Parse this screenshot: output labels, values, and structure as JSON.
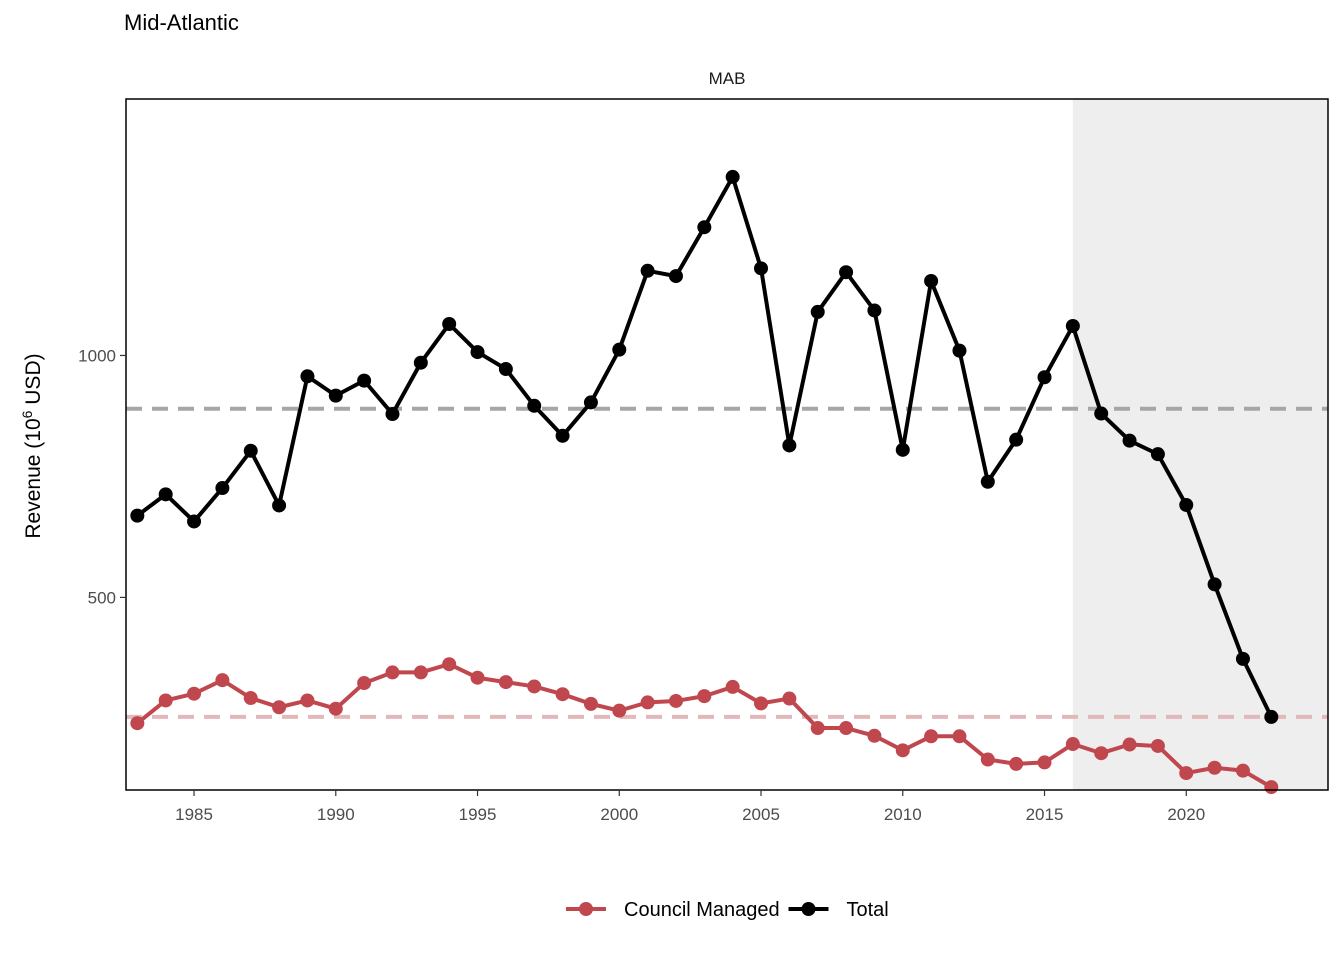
{
  "title": "Mid-Atlantic",
  "chart_data": {
    "type": "line",
    "title": "Mid-Atlantic",
    "facet": "MAB",
    "xlabel": "",
    "ylabel_main": "Revenue (10",
    "ylabel_sup": "6",
    "ylabel_tail": " USD)",
    "xlim": [
      1982.6,
      2025.0
    ],
    "ylim": [
      102,
      1530
    ],
    "x_ticks": [
      1985,
      1990,
      1995,
      2000,
      2005,
      2010,
      2015,
      2020
    ],
    "y_ticks": [
      500,
      1000
    ],
    "grid": false,
    "shaded_region": {
      "from": 2016,
      "to": 2025.0,
      "color": "#eeeeee"
    },
    "x": [
      1983,
      1984,
      1985,
      1986,
      1987,
      1988,
      1989,
      1990,
      1991,
      1992,
      1993,
      1994,
      1995,
      1996,
      1997,
      1998,
      1999,
      2000,
      2001,
      2002,
      2003,
      2004,
      2005,
      2006,
      2007,
      2008,
      2009,
      2010,
      2011,
      2012,
      2013,
      2014,
      2015,
      2016,
      2017,
      2018,
      2019,
      2020,
      2021,
      2022,
      2023
    ],
    "series": [
      {
        "name": "Council Managed",
        "color": "#c1474e",
        "mean": 253,
        "mean_color": "#e3b8bb",
        "values": [
          240,
          287,
          301,
          329,
          292,
          273,
          287,
          270,
          323,
          345,
          345,
          362,
          334,
          325,
          316,
          300,
          280,
          266,
          283,
          286,
          296,
          315,
          281,
          291,
          230,
          230,
          214,
          184,
          213,
          213,
          165,
          156,
          159,
          197,
          178,
          196,
          193,
          137,
          148,
          142,
          108
        ]
      },
      {
        "name": "Total",
        "color": "#000000",
        "mean": 890,
        "mean_color": "#a6a6a6",
        "values": [
          669,
          713,
          657,
          726,
          803,
          690,
          957,
          917,
          948,
          879,
          985,
          1065,
          1007,
          972,
          896,
          834,
          903,
          1012,
          1175,
          1164,
          1265,
          1369,
          1180,
          814,
          1090,
          1172,
          1093,
          805,
          1154,
          1010,
          739,
          826,
          955,
          1061,
          880,
          824,
          796,
          691,
          527,
          373,
          253
        ]
      }
    ],
    "legend": {
      "position": "bottom",
      "entries": [
        "Council Managed",
        "Total"
      ]
    }
  }
}
